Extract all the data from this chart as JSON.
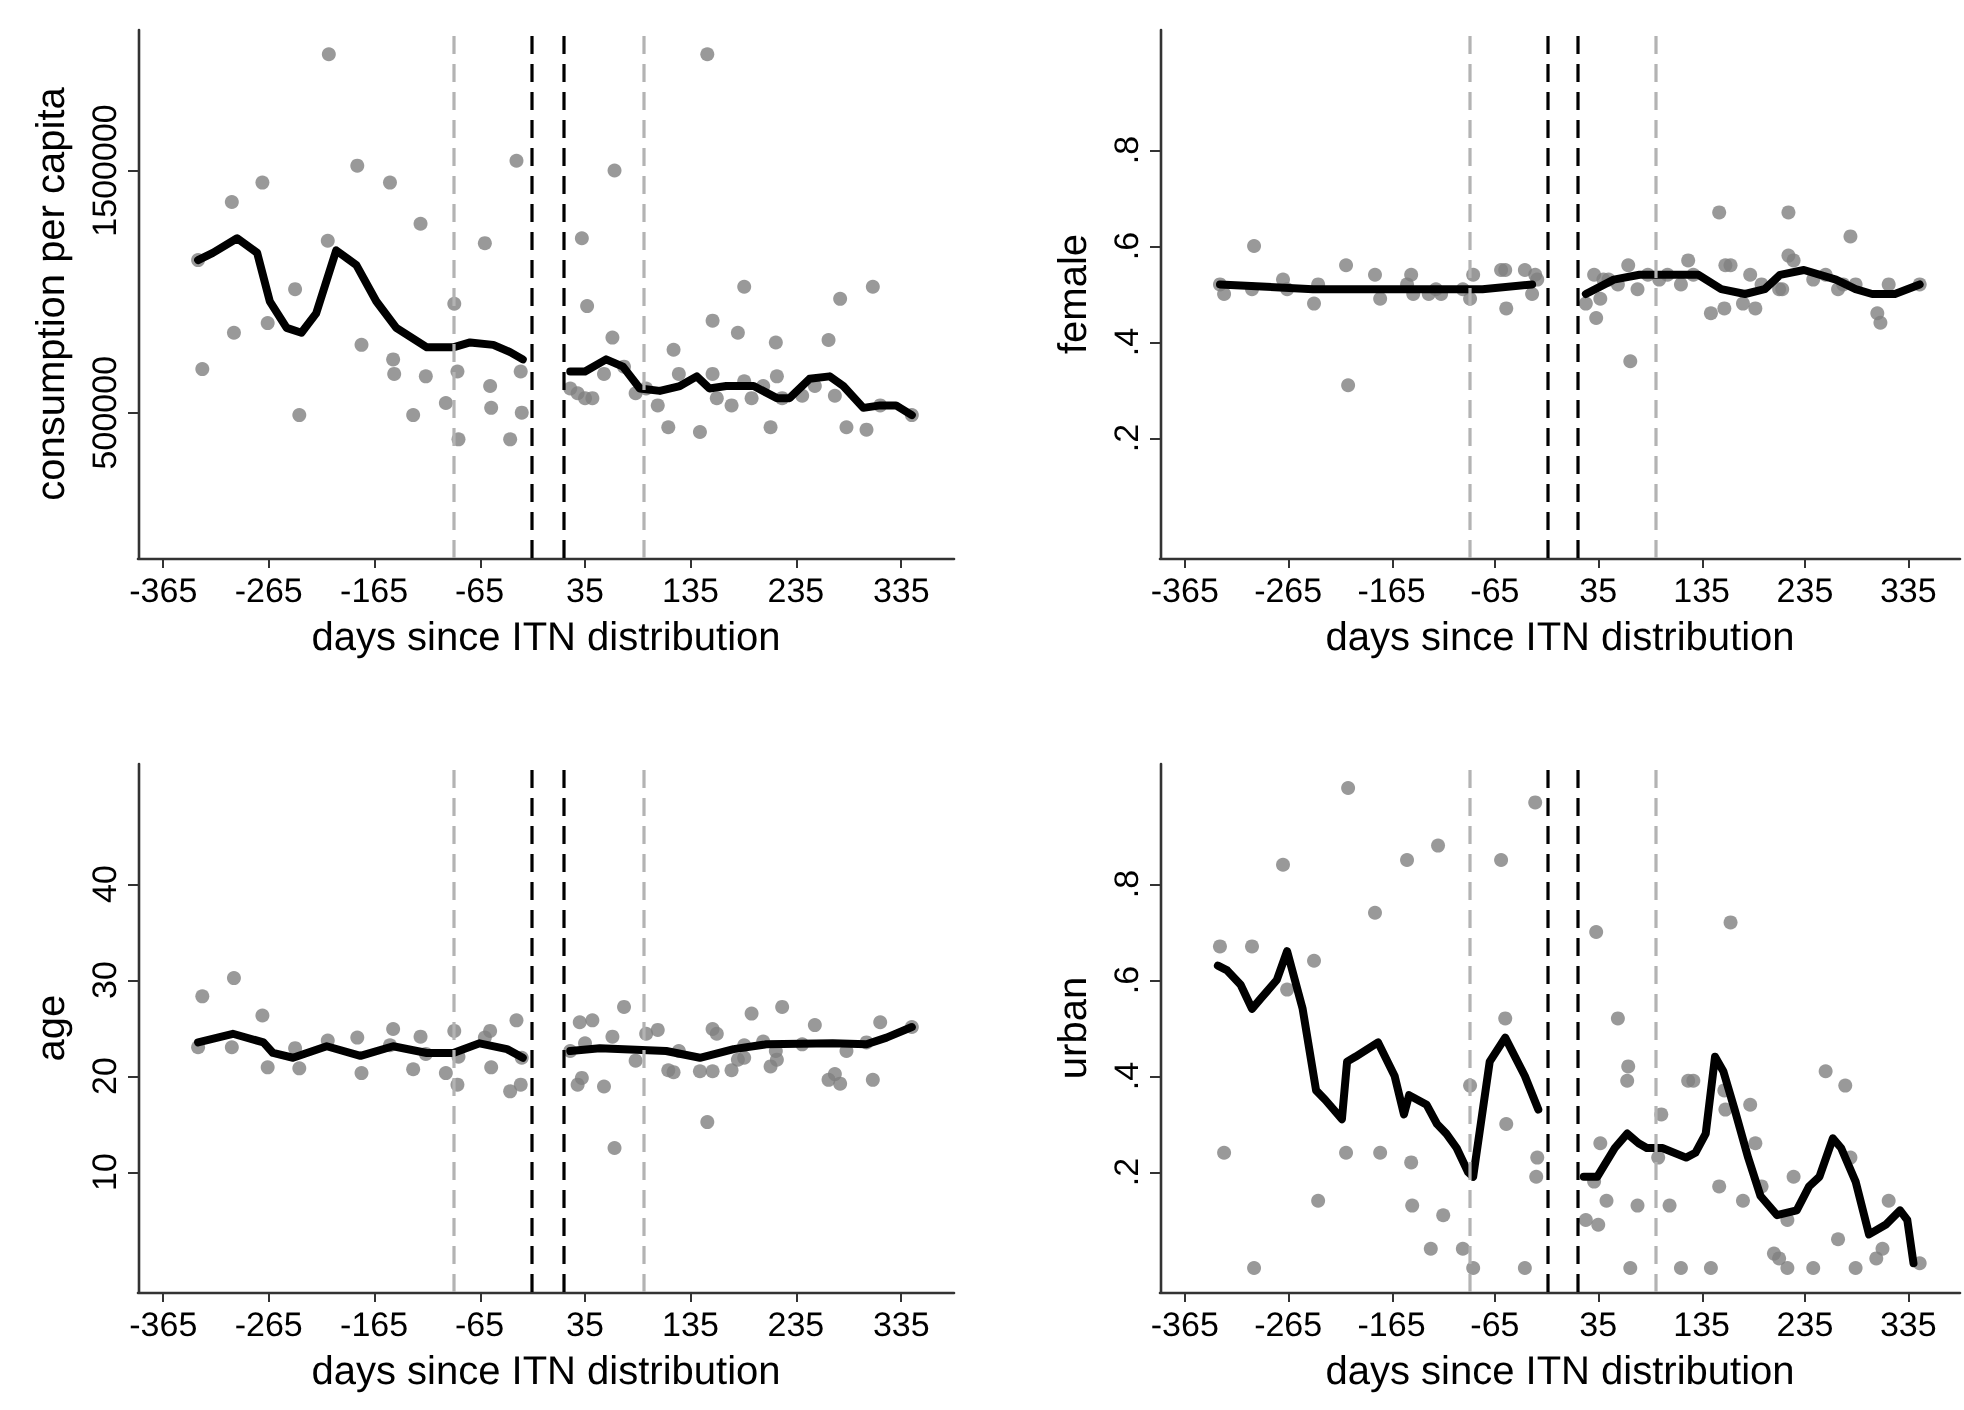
{
  "chart_data": [
    {
      "type": "scatter",
      "xlabel": "days since ITN distribution",
      "ylabel": "consumption per capita",
      "xlim": [
        -389,
        385
      ],
      "ylim": [
        -100000,
        2080000
      ],
      "xticks": [
        -365,
        -265,
        -165,
        -65,
        35,
        135,
        235,
        335
      ],
      "yticks": [
        500000,
        1500000
      ],
      "grid": false,
      "marker": "circle",
      "ref_lines": [
        {
          "axis": "x",
          "value": -90,
          "color": "#b3b3b3",
          "line_style": "dashed"
        },
        {
          "axis": "x",
          "value": -15,
          "color": "#000000",
          "line_style": "dashed"
        },
        {
          "axis": "x",
          "value": 15,
          "color": "#000000",
          "line_style": "dashed"
        },
        {
          "axis": "x",
          "value": 90,
          "color": "#b3b3b3",
          "line_style": "dashed"
        }
      ],
      "series": [
        {
          "type": "scatter",
          "color": "#808080",
          "x": [
            -332,
            -328,
            -300,
            -298,
            -271,
            -266,
            -240,
            -236,
            -209,
            -208,
            -181,
            -177,
            -150,
            -147,
            -146,
            -128,
            -121,
            -116,
            -97,
            -89,
            -86,
            -85,
            -60,
            -55,
            -54,
            -36,
            -30,
            -26,
            -25,
            32,
            37,
            21,
            28,
            35,
            42,
            53,
            61,
            63,
            72,
            83,
            93,
            104,
            114,
            119,
            124,
            144,
            151,
            156,
            156,
            160,
            174,
            180,
            186,
            186,
            193,
            204,
            211,
            216,
            217,
            222,
            241,
            253,
            266,
            272,
            277,
            283,
            302,
            308,
            315,
            345
          ],
          "values": [
            1130000,
            680000,
            1370000,
            830000,
            1450000,
            870000,
            1010000,
            490000,
            1210000,
            1980000,
            1520000,
            780000,
            1450000,
            720000,
            660000,
            490000,
            1280000,
            650000,
            540000,
            950000,
            670000,
            390000,
            1200000,
            610000,
            520000,
            390000,
            1540000,
            670000,
            500000,
            1220000,
            940000,
            600000,
            580000,
            560000,
            560000,
            660000,
            810000,
            1500000,
            690000,
            580000,
            600000,
            530000,
            440000,
            760000,
            660000,
            420000,
            1980000,
            880000,
            660000,
            560000,
            530000,
            830000,
            1020000,
            630000,
            560000,
            610000,
            440000,
            790000,
            650000,
            560000,
            570000,
            610000,
            800000,
            570000,
            970000,
            440000,
            430000,
            1020000,
            530000,
            490000
          ]
        },
        {
          "type": "line",
          "color": "#000000",
          "marker": "none",
          "x": [
            -332,
            -318,
            -295,
            -276,
            -264,
            -248,
            -234,
            -220,
            -201,
            -182,
            -163,
            -144,
            -115,
            -90,
            -74,
            -52,
            -36,
            -24
          ],
          "values": [
            1130000,
            1160000,
            1220000,
            1160000,
            960000,
            850000,
            830000,
            910000,
            1170000,
            1110000,
            960000,
            850000,
            770000,
            770000,
            790000,
            780000,
            750000,
            720000
          ]
        },
        {
          "type": "line",
          "color": "#000000",
          "marker": "none",
          "x": [
            21,
            35,
            55,
            71,
            87,
            106,
            125,
            141,
            153,
            169,
            195,
            217,
            229,
            248,
            267,
            280,
            299,
            315,
            330,
            345
          ],
          "values": [
            670000,
            670000,
            720000,
            690000,
            600000,
            590000,
            610000,
            650000,
            600000,
            610000,
            610000,
            560000,
            560000,
            640000,
            650000,
            610000,
            520000,
            530000,
            530000,
            490000
          ]
        }
      ]
    },
    {
      "type": "scatter",
      "xlabel": "days since ITN distribution",
      "ylabel": "female",
      "xlim": [
        -389,
        385
      ],
      "ylim": [
        -0.05,
        1.05
      ],
      "xticks": [
        -365,
        -265,
        -165,
        -65,
        35,
        135,
        235,
        335
      ],
      "yticks": [
        {
          "value": 0.2,
          "label": ".2"
        },
        {
          "value": 0.4,
          "label": ".4"
        },
        {
          "value": 0.6,
          "label": ".6"
        },
        {
          "value": 0.8,
          "label": ".8"
        }
      ],
      "grid": false,
      "marker": "circle",
      "ref_lines": [
        {
          "axis": "x",
          "value": -90,
          "color": "#b3b3b3",
          "line_style": "dashed"
        },
        {
          "axis": "x",
          "value": -15,
          "color": "#000000",
          "line_style": "dashed"
        },
        {
          "axis": "x",
          "value": 15,
          "color": "#000000",
          "line_style": "dashed"
        },
        {
          "axis": "x",
          "value": 90,
          "color": "#b3b3b3",
          "line_style": "dashed"
        }
      ],
      "series": [
        {
          "type": "scatter",
          "color": "#808080",
          "x": [
            -331,
            -327,
            -300,
            -298,
            -270,
            -266,
            -240,
            -236,
            -209,
            -207,
            -181,
            -176,
            -150,
            -146,
            -144,
            -129,
            -122,
            -117,
            -96,
            -89,
            -86,
            -59,
            -55,
            -54,
            -36,
            -29,
            -26,
            -24,
            23,
            31,
            33,
            37,
            40,
            45,
            54,
            64,
            66,
            73,
            83,
            94,
            102,
            115,
            122,
            127,
            144,
            152,
            157,
            158,
            163,
            175,
            182,
            187,
            193,
            210,
            213,
            219,
            219,
            224,
            243,
            255,
            267,
            272,
            279,
            284,
            305,
            308,
            316,
            346
          ],
          "values": [
            0.52,
            0.5,
            0.51,
            0.6,
            0.53,
            0.51,
            0.48,
            0.52,
            0.56,
            0.31,
            0.54,
            0.49,
            0.52,
            0.54,
            0.5,
            0.5,
            0.51,
            0.5,
            0.51,
            0.49,
            0.54,
            0.55,
            0.55,
            0.47,
            0.55,
            0.5,
            0.54,
            0.53,
            0.48,
            0.54,
            0.45,
            0.49,
            0.53,
            0.53,
            0.52,
            0.56,
            0.36,
            0.51,
            0.54,
            0.53,
            0.54,
            0.52,
            0.57,
            0.54,
            0.46,
            0.67,
            0.47,
            0.56,
            0.56,
            0.48,
            0.54,
            0.47,
            0.52,
            0.51,
            0.51,
            0.67,
            0.58,
            0.57,
            0.53,
            0.54,
            0.51,
            0.52,
            0.62,
            0.52,
            0.46,
            0.44,
            0.52,
            0.52
          ]
        },
        {
          "type": "line",
          "color": "#000000",
          "marker": "none",
          "x": [
            -331,
            -241,
            -146,
            -77,
            -29
          ],
          "values": [
            0.52,
            0.51,
            0.51,
            0.51,
            0.52
          ]
        },
        {
          "type": "line",
          "color": "#000000",
          "marker": "none",
          "x": [
            23,
            50,
            75,
            113,
            132,
            154,
            177,
            196,
            211,
            234,
            265,
            284,
            300,
            322,
            346
          ],
          "values": [
            0.5,
            0.53,
            0.54,
            0.54,
            0.54,
            0.51,
            0.5,
            0.51,
            0.54,
            0.55,
            0.53,
            0.51,
            0.5,
            0.5,
            0.52
          ]
        }
      ]
    },
    {
      "type": "scatter",
      "xlabel": "days since ITN distribution",
      "ylabel": "age",
      "xlim": [
        -389,
        385
      ],
      "ylim": [
        -2.5,
        52.5
      ],
      "xticks": [
        -365,
        -265,
        -165,
        -65,
        35,
        135,
        235,
        335
      ],
      "yticks": [
        10,
        20,
        30,
        40
      ],
      "grid": false,
      "marker": "circle",
      "ref_lines": [
        {
          "axis": "x",
          "value": -90,
          "color": "#b3b3b3",
          "line_style": "dashed"
        },
        {
          "axis": "x",
          "value": -15,
          "color": "#000000",
          "line_style": "dashed"
        },
        {
          "axis": "x",
          "value": 15,
          "color": "#000000",
          "line_style": "dashed"
        },
        {
          "axis": "x",
          "value": 90,
          "color": "#b3b3b3",
          "line_style": "dashed"
        }
      ],
      "series": [
        {
          "type": "scatter",
          "color": "#808080",
          "x": [
            -332,
            -328,
            -300,
            -298,
            -271,
            -266,
            -240,
            -236,
            -209,
            -181,
            -177,
            -150,
            -147,
            -128,
            -121,
            -116,
            -97,
            -89,
            -86,
            -85,
            -60,
            -55,
            -54,
            -36,
            -30,
            -26,
            -25,
            21,
            28,
            30,
            32,
            35,
            42,
            53,
            61,
            63,
            72,
            83,
            93,
            104,
            114,
            119,
            124,
            144,
            151,
            156,
            156,
            160,
            174,
            180,
            186,
            186,
            193,
            204,
            211,
            216,
            217,
            222,
            241,
            253,
            266,
            272,
            277,
            283,
            302,
            308,
            315,
            345
          ],
          "values": [
            23.0,
            28.3,
            23.0,
            30.2,
            26.3,
            20.9,
            22.9,
            20.8,
            23.7,
            24.0,
            20.3,
            23.2,
            24.9,
            20.7,
            24.1,
            22.3,
            20.3,
            24.7,
            19.1,
            22.0,
            24.0,
            24.7,
            20.9,
            18.4,
            25.8,
            19.1,
            21.9,
            22.6,
            19.1,
            25.6,
            19.8,
            23.4,
            25.8,
            18.9,
            24.1,
            12.5,
            27.2,
            21.6,
            24.4,
            24.8,
            20.6,
            20.4,
            22.6,
            20.5,
            15.2,
            24.9,
            20.5,
            24.4,
            20.6,
            21.7,
            23.2,
            21.9,
            26.5,
            23.6,
            21.0,
            22.6,
            21.7,
            27.2,
            23.3,
            25.3,
            19.6,
            20.2,
            19.2,
            22.6,
            23.5,
            19.6,
            25.6,
            25.1
          ]
        },
        {
          "type": "line",
          "color": "#000000",
          "marker": "none",
          "x": [
            -332,
            -299,
            -270,
            -261,
            -242,
            -210,
            -178,
            -147,
            -115,
            -90,
            -65,
            -39,
            -24
          ],
          "values": [
            23.5,
            24.4,
            23.5,
            22.4,
            21.9,
            23.1,
            22.1,
            23.1,
            22.4,
            22.4,
            23.4,
            22.8,
            21.9
          ]
        },
        {
          "type": "line",
          "color": "#000000",
          "marker": "none",
          "x": [
            21,
            49,
            112,
            144,
            176,
            207,
            270,
            302,
            321,
            345
          ],
          "values": [
            22.6,
            22.9,
            22.6,
            21.9,
            22.8,
            23.3,
            23.4,
            23.3,
            24.0,
            25.1
          ]
        }
      ]
    },
    {
      "type": "scatter",
      "xlabel": "days since ITN distribution",
      "ylabel": "urban",
      "xlim": [
        -389,
        385
      ],
      "ylim": [
        -0.05,
        1.05
      ],
      "xticks": [
        -365,
        -265,
        -165,
        -65,
        35,
        135,
        235,
        335
      ],
      "yticks": [
        {
          "value": 0.2,
          "label": ".2"
        },
        {
          "value": 0.4,
          "label": ".4"
        },
        {
          "value": 0.6,
          "label": ".6"
        },
        {
          "value": 0.8,
          "label": ".8"
        }
      ],
      "grid": false,
      "marker": "circle",
      "ref_lines": [
        {
          "axis": "x",
          "value": -90,
          "color": "#b3b3b3",
          "line_style": "dashed"
        },
        {
          "axis": "x",
          "value": -15,
          "color": "#000000",
          "line_style": "dashed"
        },
        {
          "axis": "x",
          "value": 15,
          "color": "#000000",
          "line_style": "dashed"
        },
        {
          "axis": "x",
          "value": 90,
          "color": "#b3b3b3",
          "line_style": "dashed"
        }
      ],
      "series": [
        {
          "type": "scatter",
          "color": "#808080",
          "x": [
            -331,
            -327,
            -300,
            -298,
            -270,
            -266,
            -240,
            -236,
            -209,
            -207,
            -181,
            -176,
            -150,
            -146,
            -145,
            -127,
            -120,
            -115,
            -96,
            -89,
            -86,
            -59,
            -55,
            -54,
            -36,
            -26,
            -24,
            -25,
            23,
            31,
            33,
            35,
            37,
            43,
            54,
            64,
            63,
            66,
            73,
            93,
            96,
            104,
            115,
            122,
            127,
            144,
            152,
            157,
            158,
            163,
            175,
            182,
            187,
            193,
            205,
            210,
            218,
            218,
            224,
            243,
            255,
            267,
            274,
            279,
            284,
            304,
            310,
            316,
            346
          ],
          "values": [
            0.67,
            0.24,
            0.67,
            0,
            0.84,
            0.58,
            0.64,
            0.14,
            0.24,
            1.0,
            0.74,
            0.24,
            0.85,
            0.22,
            0.13,
            0.04,
            0.88,
            0.11,
            0.04,
            0.38,
            0,
            0.85,
            0.52,
            0.3,
            0,
            0.97,
            0.23,
            0.19,
            0.1,
            0.18,
            0.7,
            0.09,
            0.26,
            0.14,
            0.52,
            0.42,
            0.39,
            0,
            0.13,
            0.23,
            0.32,
            0.13,
            0,
            0.39,
            0.39,
            0,
            0.17,
            0.37,
            0.33,
            0.72,
            0.14,
            0.34,
            0.26,
            0.17,
            0.03,
            0.02,
            0,
            0.1,
            0.19,
            0,
            0.41,
            0.06,
            0.38,
            0.23,
            0,
            0.02,
            0.04,
            0.14,
            0.01
          ]
        },
        {
          "type": "line",
          "color": "#000000",
          "marker": "none",
          "x": [
            -333,
            -324,
            -311,
            -300,
            -292,
            -276,
            -266,
            -251,
            -238,
            -229,
            -213,
            -208,
            -200,
            -178,
            -162,
            -153,
            -148,
            -131,
            -121,
            -112,
            -102,
            -91,
            -86,
            -70,
            -55,
            -36,
            -23
          ],
          "values": [
            0.63,
            0.62,
            0.59,
            0.54,
            0.56,
            0.6,
            0.66,
            0.54,
            0.37,
            0.35,
            0.31,
            0.43,
            0.44,
            0.47,
            0.4,
            0.32,
            0.36,
            0.34,
            0.3,
            0.28,
            0.25,
            0.2,
            0.19,
            0.43,
            0.48,
            0.4,
            0.33
          ]
        },
        {
          "type": "line",
          "color": "#000000",
          "marker": "none",
          "x": [
            21,
            34,
            51,
            63,
            74,
            82,
            97,
            120,
            129,
            139,
            148,
            156,
            167,
            180,
            192,
            208,
            227,
            239,
            249,
            262,
            270,
            284,
            297,
            313,
            327,
            334,
            340
          ],
          "values": [
            0.19,
            0.19,
            0.25,
            0.28,
            0.26,
            0.25,
            0.25,
            0.23,
            0.24,
            0.28,
            0.44,
            0.41,
            0.33,
            0.23,
            0.15,
            0.11,
            0.12,
            0.17,
            0.19,
            0.27,
            0.25,
            0.18,
            0.07,
            0.09,
            0.12,
            0.1,
            0.01
          ]
        }
      ]
    }
  ]
}
